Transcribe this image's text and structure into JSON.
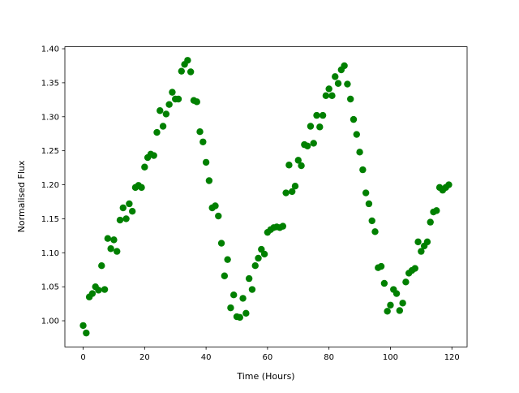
{
  "chart_data": {
    "type": "scatter",
    "x_label": "Time (Hours)",
    "y_label": "Normalised Flux",
    "color": "#008000",
    "x": [
      0,
      1,
      2,
      3,
      4,
      5,
      6,
      7,
      8,
      9,
      10,
      11,
      12,
      13,
      14,
      15,
      16,
      17,
      18,
      19,
      20,
      21,
      22,
      23,
      24,
      25,
      26,
      27,
      28,
      29,
      30,
      31,
      32,
      33,
      34,
      35,
      36,
      37,
      38,
      39,
      40,
      41,
      42,
      43,
      44,
      45,
      46,
      47,
      48,
      49,
      50,
      51,
      52,
      53,
      54,
      55,
      56,
      57,
      58,
      59,
      60,
      61,
      62,
      63,
      64,
      65,
      66,
      67,
      68,
      69,
      70,
      71,
      72,
      73,
      74,
      75,
      76,
      77,
      78,
      79,
      80,
      81,
      82,
      83,
      84,
      85,
      86,
      87,
      88,
      89,
      90,
      91,
      92,
      93,
      94,
      95,
      96,
      97,
      98,
      99,
      100,
      101,
      102,
      103,
      104,
      105,
      106,
      107,
      108,
      109,
      110,
      111,
      112,
      113,
      114,
      115,
      116,
      117,
      118,
      119
    ],
    "values": [
      0.993,
      0.982,
      1.035,
      1.04,
      1.05,
      1.045,
      1.081,
      1.046,
      1.121,
      1.106,
      1.119,
      1.102,
      1.148,
      1.166,
      1.15,
      1.172,
      1.161,
      1.196,
      1.199,
      1.196,
      1.226,
      1.24,
      1.245,
      1.243,
      1.277,
      1.309,
      1.286,
      1.304,
      1.318,
      1.336,
      1.326,
      1.326,
      1.367,
      1.377,
      1.383,
      1.366,
      1.324,
      1.322,
      1.278,
      1.263,
      1.233,
      1.206,
      1.166,
      1.169,
      1.154,
      1.114,
      1.066,
      1.09,
      1.019,
      1.038,
      1.006,
      1.005,
      1.033,
      1.011,
      1.062,
      1.046,
      1.081,
      1.092,
      1.105,
      1.098,
      1.13,
      1.134,
      1.137,
      1.138,
      1.137,
      1.139,
      1.188,
      1.229,
      1.19,
      1.198,
      1.236,
      1.228,
      1.259,
      1.257,
      1.286,
      1.261,
      1.302,
      1.285,
      1.302,
      1.331,
      1.341,
      1.331,
      1.359,
      1.349,
      1.369,
      1.375,
      1.348,
      1.326,
      1.296,
      1.274,
      1.248,
      1.222,
      1.188,
      1.172,
      1.147,
      1.131,
      1.078,
      1.08,
      1.055,
      1.014,
      1.023,
      1.046,
      1.04,
      1.015,
      1.026,
      1.057,
      1.07,
      1.074,
      1.077,
      1.116,
      1.102,
      1.11,
      1.116,
      1.145,
      1.16,
      1.162,
      1.196,
      1.192,
      1.196,
      1.2
    ],
    "xlim": [
      -5.95,
      124.95
    ],
    "xticks": [
      0,
      20,
      40,
      60,
      80,
      100,
      120
    ],
    "ylim": [
      0.9616,
      1.4029
    ],
    "yticks": [
      {
        "value": 1.0,
        "label": "1.00"
      },
      1.05,
      {
        "value": 1.1,
        "label": "1.10"
      },
      1.15,
      {
        "value": 1.2,
        "label": "1.20"
      },
      1.25,
      {
        "value": 1.3,
        "label": "1.30"
      },
      1.35,
      {
        "value": 1.4,
        "label": "1.40"
      }
    ],
    "grid": false
  }
}
